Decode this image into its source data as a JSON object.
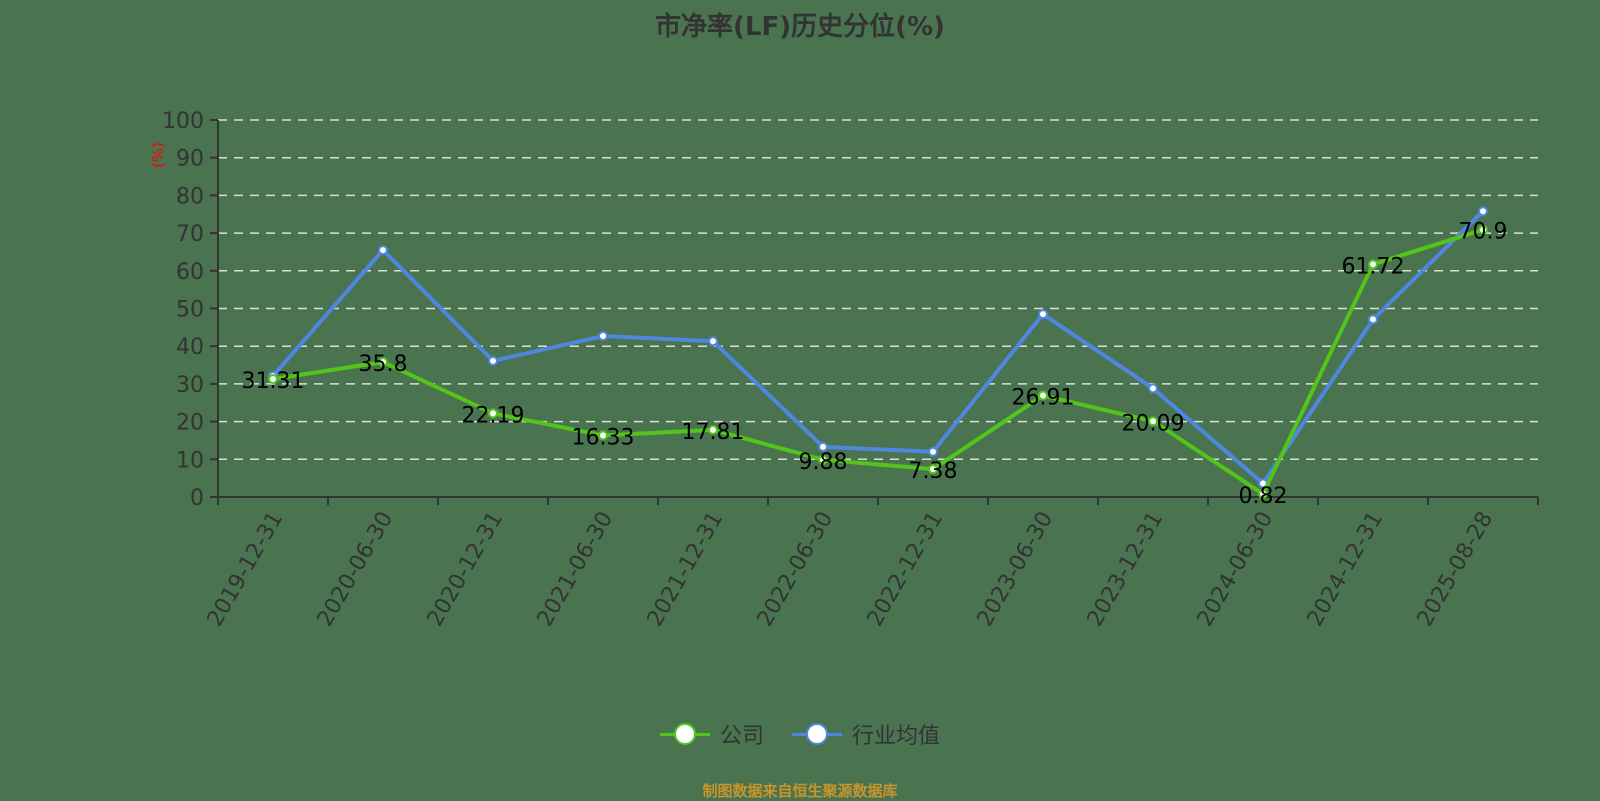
{
  "title": "市净率(LF)历史分位(%)",
  "footer": "制图数据来自恒生聚源数据库",
  "legend": [
    {
      "label": "公司",
      "color": "#52c41a"
    },
    {
      "label": "行业均值",
      "color": "#4f86e0"
    }
  ],
  "y_unit_label": "(%)",
  "chart_data": {
    "type": "line",
    "title": "市净率(LF)历史分位(%)",
    "xlabel": "",
    "ylabel": "(%)",
    "ylim": [
      0,
      100
    ],
    "yticks": [
      0,
      10,
      20,
      30,
      40,
      50,
      60,
      70,
      80,
      90,
      100
    ],
    "grid": true,
    "legend_position": "bottom",
    "categories": [
      "2019-12-31",
      "2020-06-30",
      "2020-12-31",
      "2021-06-30",
      "2021-12-31",
      "2022-06-30",
      "2022-12-31",
      "2023-06-30",
      "2023-12-31",
      "2024-06-30",
      "2024-12-31",
      "2025-08-28"
    ],
    "series": [
      {
        "name": "公司",
        "color": "#52c41a",
        "values": [
          31.31,
          35.8,
          22.19,
          16.33,
          17.81,
          9.88,
          7.38,
          26.91,
          20.09,
          0.82,
          61.72,
          70.9
        ],
        "labels_shown": true
      },
      {
        "name": "行业均值",
        "color": "#4f86e0",
        "values": [
          32.1,
          65.5,
          36.1,
          42.7,
          41.3,
          13.3,
          12.0,
          48.5,
          28.8,
          3.6,
          47.1,
          75.8
        ],
        "labels_shown": false
      }
    ]
  }
}
